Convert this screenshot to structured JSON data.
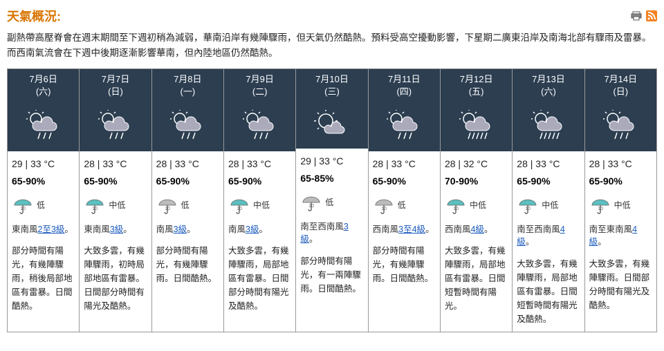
{
  "title": "天氣概況:",
  "overview": "副熱帶高壓脊會在週末期間至下週初稍為減弱，華南沿岸有幾陣驟雨，但天氣仍然酷熱。預料受高空擾動影響，下星期二廣東沿岸及南海北部有驟雨及雷暴。而西南氣流會在下週中後期逐漸影響華南，但內陸地區仍然酷熱。",
  "days": [
    {
      "date": "7月6日",
      "dow": "(六)",
      "icon": "sun-cloud-rain",
      "temp": "29 | 33 °C",
      "hum": "65-90%",
      "psr": "低",
      "umb": "teal",
      "wind_pre": "東南風",
      "wind_link": "2至3級",
      "wind_post": "。",
      "desc": "部分時間有陽光，有幾陣驟雨，稍後局部地區有雷暴。日間酷熱。"
    },
    {
      "date": "7月7日",
      "dow": "(日)",
      "icon": "sun-cloud-rain",
      "temp": "28 | 33 °C",
      "hum": "65-90%",
      "psr": "中低",
      "umb": "teal",
      "wind_pre": "東南風",
      "wind_link": "3級",
      "wind_post": "。",
      "desc": "大致多雲，有幾陣驟雨，初時局部地區有雷暴。日間部分時間有陽光及酷熱。"
    },
    {
      "date": "7月8日",
      "dow": "(一)",
      "icon": "sun-cloud-rain",
      "temp": "28 | 33 °C",
      "hum": "65-90%",
      "psr": "低",
      "umb": "gray",
      "wind_pre": "南風",
      "wind_link": "3級",
      "wind_post": "。",
      "desc": "部分時間有陽光，有幾陣驟雨。日間酷熱。"
    },
    {
      "date": "7月9日",
      "dow": "(二)",
      "icon": "sun-cloud-rain",
      "temp": "28 | 33 °C",
      "hum": "65-90%",
      "psr": "中低",
      "umb": "teal",
      "wind_pre": "南風",
      "wind_link": "3級",
      "wind_post": "。",
      "desc": "大致多雲，有幾陣驟雨，局部地區有雷暴。日間部分時間有陽光及酷熱。"
    },
    {
      "date": "7月10日",
      "dow": "(三)",
      "icon": "sun-cloud",
      "temp": "29 | 33 °C",
      "hum": "65-85%",
      "psr": "低",
      "umb": "gray",
      "wind_pre": "南至西南風",
      "wind_link": "3級",
      "wind_post": "。",
      "desc": "部分時間有陽光，有一兩陣驟雨。日間酷熱。"
    },
    {
      "date": "7月11日",
      "dow": "(四)",
      "icon": "sun-cloud-rain",
      "temp": "28 | 33 °C",
      "hum": "65-90%",
      "psr": "低",
      "umb": "gray",
      "wind_pre": "西南風",
      "wind_link": "3至4級",
      "wind_post": "。",
      "desc": "部分時間有陽光，有幾陣驟雨。日間酷熱。"
    },
    {
      "date": "7月12日",
      "dow": "(五)",
      "icon": "sun-cloud-heavy-rain",
      "temp": "28 | 32 °C",
      "hum": "70-90%",
      "psr": "中低",
      "umb": "teal",
      "wind_pre": "西南風",
      "wind_link": "4級",
      "wind_post": "。",
      "desc": "大致多雲，有幾陣驟雨，局部地區有雷暴。日間短暫時間有陽光。"
    },
    {
      "date": "7月13日",
      "dow": "(六)",
      "icon": "sun-cloud-heavy-rain",
      "temp": "28 | 33 °C",
      "hum": "65-90%",
      "psr": "中低",
      "umb": "teal",
      "wind_pre": "南至西南風",
      "wind_link": "4級",
      "wind_post": "。",
      "desc": "大致多雲，有幾陣驟雨，局部地區有雷暴。日間短暫時間有陽光及酷熱。"
    },
    {
      "date": "7月14日",
      "dow": "(日)",
      "icon": "sun-cloud-rain",
      "temp": "28 | 33 °C",
      "hum": "65-90%",
      "psr": "中低",
      "umb": "teal",
      "wind_pre": "南至東南風",
      "wind_link": "4級",
      "wind_post": "。",
      "desc": "大致多雲，有幾陣驟雨。日間部分時間有陽光及酷熱。"
    }
  ]
}
